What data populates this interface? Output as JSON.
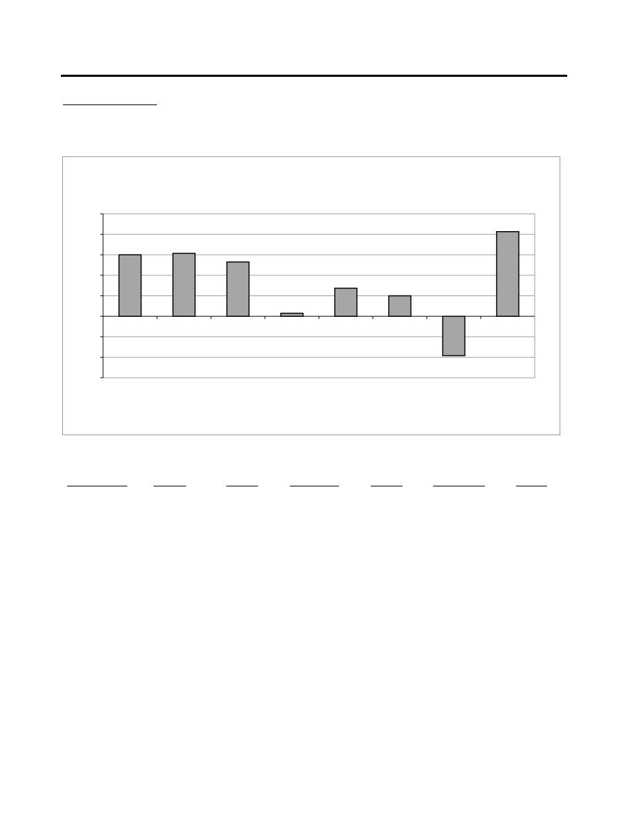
{
  "chart_data": {
    "type": "bar",
    "categories": [
      "",
      "",
      "",
      "",
      "",
      "",
      "",
      ""
    ],
    "values": [
      3.0,
      3.07,
      2.65,
      0.15,
      1.37,
      1.0,
      -1.92,
      4.13
    ],
    "ylim": [
      -3,
      5
    ],
    "grid": true,
    "colors": {
      "bar_fill": "#a6a6a6",
      "bar_stroke": "#000000",
      "grid": "#a0a0a0",
      "frame": "#9a9a9a"
    }
  },
  "table": {
    "column_count": 7
  }
}
